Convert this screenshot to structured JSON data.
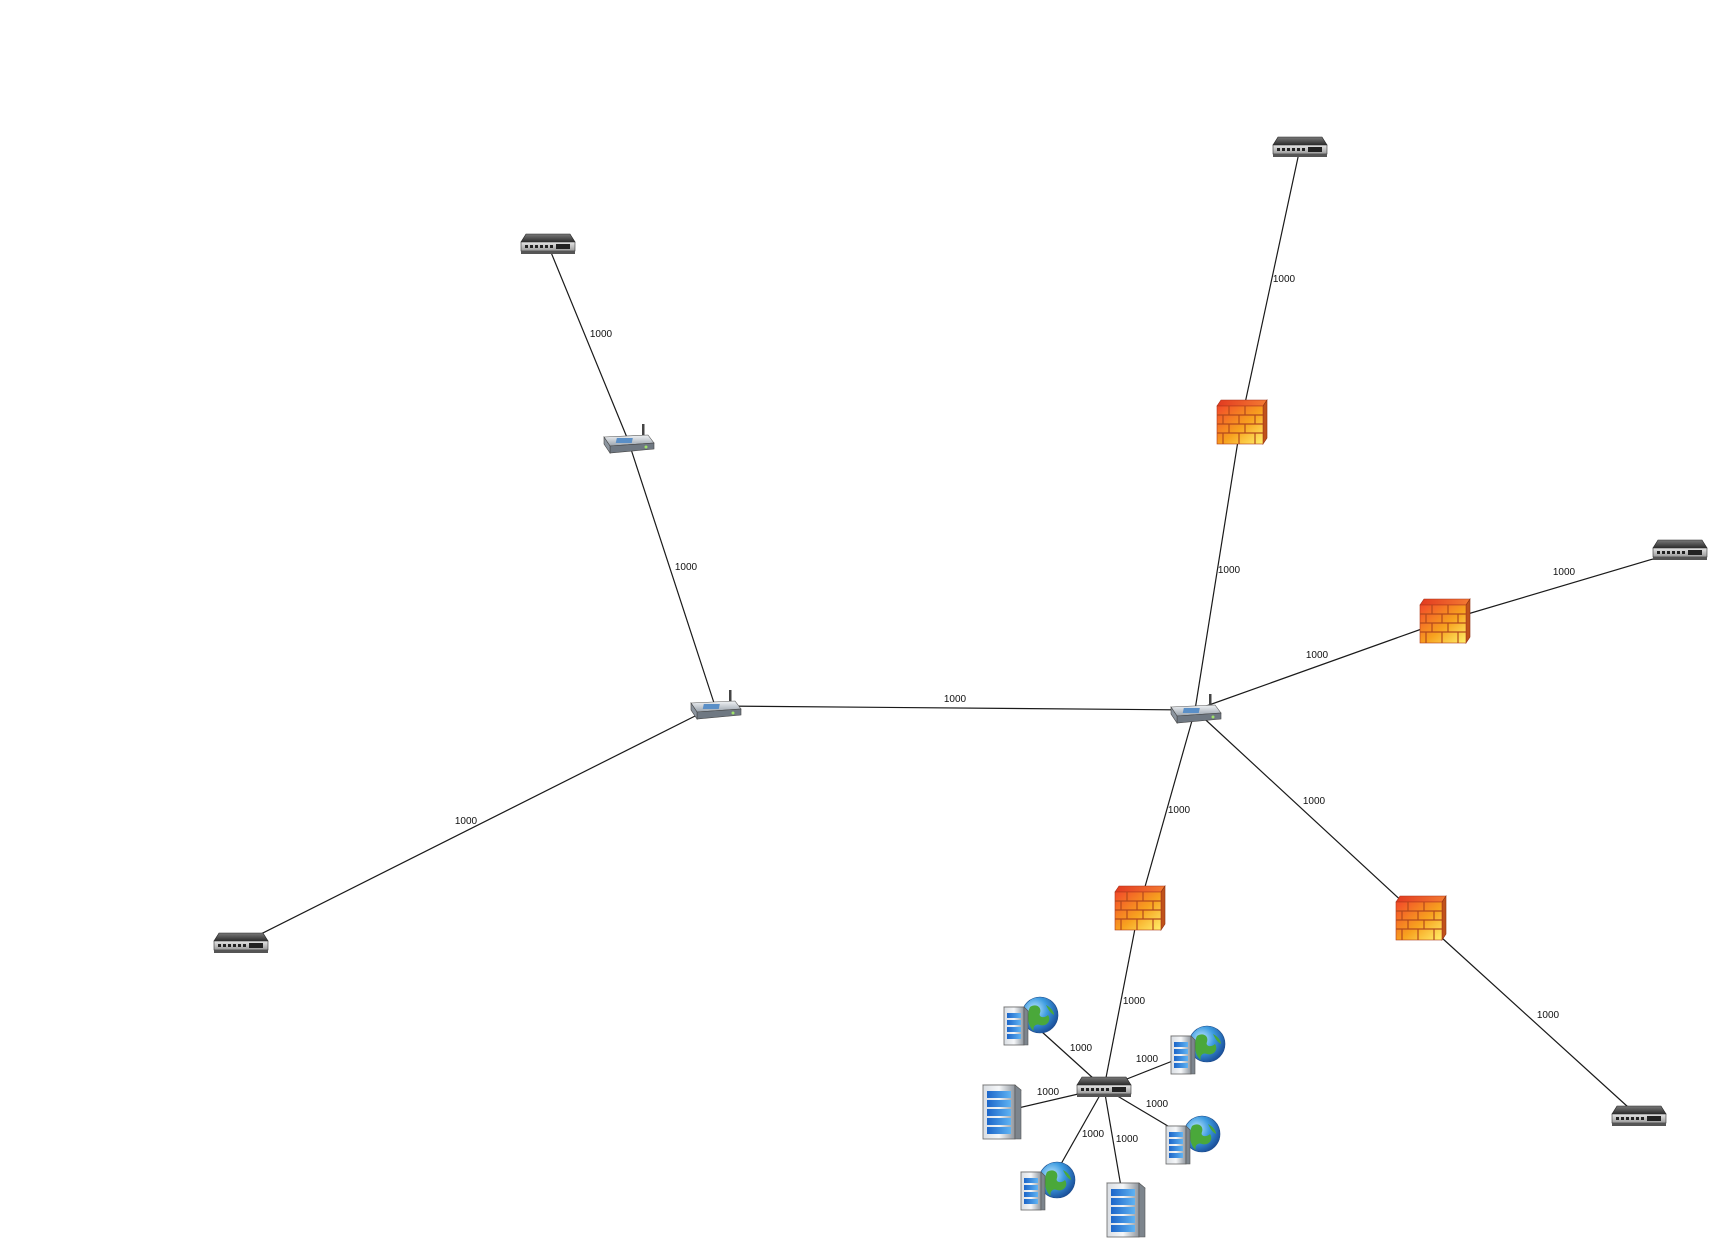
{
  "diagram": {
    "type": "network-topology",
    "nodes": [
      {
        "id": "sw-top-left",
        "kind": "switch",
        "icon": "switch-icon"
      },
      {
        "id": "rt-left-mid",
        "kind": "router",
        "icon": "router-icon"
      },
      {
        "id": "rt-center-left",
        "kind": "router",
        "icon": "router-icon"
      },
      {
        "id": "sw-bottom-left",
        "kind": "switch",
        "icon": "switch-icon"
      },
      {
        "id": "rt-center-right",
        "kind": "router",
        "icon": "router-icon"
      },
      {
        "id": "fw-upper",
        "kind": "firewall",
        "icon": "firewall-icon"
      },
      {
        "id": "sw-top-right",
        "kind": "switch",
        "icon": "switch-icon"
      },
      {
        "id": "fw-right",
        "kind": "firewall",
        "icon": "firewall-icon"
      },
      {
        "id": "sw-far-right",
        "kind": "switch",
        "icon": "switch-icon"
      },
      {
        "id": "fw-lower-right",
        "kind": "firewall",
        "icon": "firewall-icon"
      },
      {
        "id": "sw-bottom-right",
        "kind": "switch",
        "icon": "switch-icon"
      },
      {
        "id": "fw-lower",
        "kind": "firewall",
        "icon": "firewall-icon"
      },
      {
        "id": "sw-cluster",
        "kind": "switch",
        "icon": "switch-icon"
      },
      {
        "id": "web-1",
        "kind": "web-server",
        "icon": "web-server-icon"
      },
      {
        "id": "web-2",
        "kind": "web-server",
        "icon": "web-server-icon"
      },
      {
        "id": "web-3",
        "kind": "web-server",
        "icon": "web-server-icon"
      },
      {
        "id": "web-4",
        "kind": "web-server",
        "icon": "web-server-icon"
      },
      {
        "id": "srv-1",
        "kind": "server",
        "icon": "server-icon"
      },
      {
        "id": "srv-2",
        "kind": "server",
        "icon": "server-icon"
      }
    ],
    "edges": [
      {
        "from": "sw-top-left",
        "to": "rt-left-mid",
        "label": "1000"
      },
      {
        "from": "rt-left-mid",
        "to": "rt-center-left",
        "label": "1000"
      },
      {
        "from": "rt-center-left",
        "to": "rt-center-right",
        "label": "1000"
      },
      {
        "from": "rt-center-left",
        "to": "sw-bottom-left",
        "label": "1000"
      },
      {
        "from": "sw-top-right",
        "to": "fw-upper",
        "label": "1000"
      },
      {
        "from": "fw-upper",
        "to": "rt-center-right",
        "label": "1000"
      },
      {
        "from": "sw-far-right",
        "to": "fw-right",
        "label": "1000"
      },
      {
        "from": "fw-right",
        "to": "rt-center-right",
        "label": "1000"
      },
      {
        "from": "rt-center-right",
        "to": "fw-lower-right",
        "label": "1000"
      },
      {
        "from": "fw-lower-right",
        "to": "sw-bottom-right",
        "label": "1000"
      },
      {
        "from": "rt-center-right",
        "to": "fw-lower",
        "label": "1000"
      },
      {
        "from": "fw-lower",
        "to": "sw-cluster",
        "label": "1000"
      },
      {
        "from": "sw-cluster",
        "to": "web-1",
        "label": "1000"
      },
      {
        "from": "sw-cluster",
        "to": "web-2",
        "label": "1000"
      },
      {
        "from": "sw-cluster",
        "to": "srv-1",
        "label": "1000"
      },
      {
        "from": "sw-cluster",
        "to": "web-3",
        "label": "1000"
      },
      {
        "from": "sw-cluster",
        "to": "web-4",
        "label": "1000"
      },
      {
        "from": "sw-cluster",
        "to": "srv-2",
        "label": "1000"
      }
    ]
  }
}
